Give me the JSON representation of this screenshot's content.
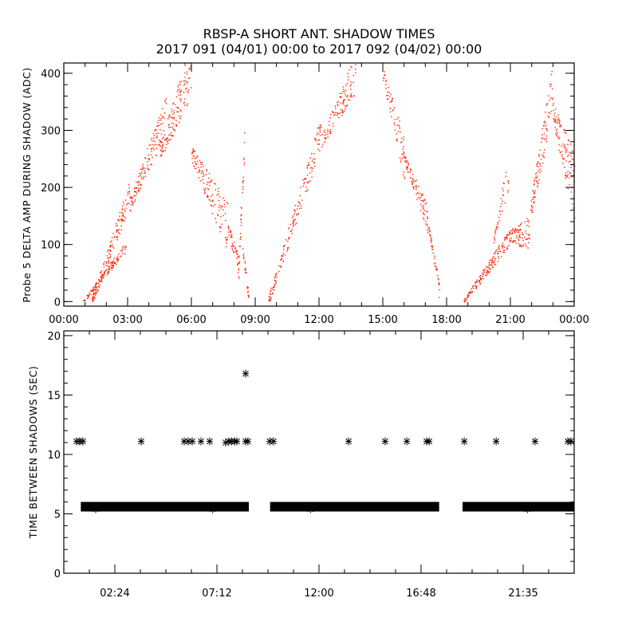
{
  "title": "RBSP-A SHORT ANT. SHADOW TIMES",
  "subtitle": "2017 091 (04/01) 00:00 to 2017 092 (04/02) 00:00",
  "colors": {
    "points": "#ff2000",
    "stars": "#000000",
    "axes": "#000000"
  },
  "chart_data": [
    {
      "type": "scatter",
      "ylabel": "Probe 5 DELTA AMP DURING SHADOW (ADC)",
      "xlabel": "",
      "xlim": [
        0,
        24
      ],
      "ylim": [
        -8,
        418
      ],
      "x_unit": "hours",
      "x_ticks": [
        0,
        3,
        6,
        9,
        12,
        15,
        18,
        21,
        24
      ],
      "x_tick_labels": [
        "00:00",
        "03:00",
        "06:00",
        "09:00",
        "12:00",
        "15:00",
        "18:00",
        "21:00",
        "00:00"
      ],
      "y_ticks": [
        0,
        100,
        200,
        300,
        400
      ],
      "y_tick_labels": [
        "0",
        "100",
        "200",
        "300",
        "400"
      ],
      "trend_segments_note": "each: [t_start_h, t_end_h, value_start, value_end, spread, density]",
      "trend_segments": [
        [
          0.9,
          2.9,
          0,
          96,
          10,
          120
        ],
        [
          1.3,
          3.1,
          0,
          190,
          25,
          140
        ],
        [
          3.1,
          4.8,
          170,
          330,
          35,
          140
        ],
        [
          4.5,
          6.0,
          260,
          410,
          50,
          140
        ],
        [
          6.0,
          7.7,
          260,
          130,
          45,
          130
        ],
        [
          7.7,
          8.3,
          130,
          50,
          25,
          50
        ],
        [
          8.2,
          8.5,
          60,
          280,
          40,
          30
        ],
        [
          8.4,
          8.7,
          90,
          5,
          15,
          25
        ],
        [
          9.6,
          12.1,
          0,
          300,
          30,
          170
        ],
        [
          12.1,
          13.7,
          280,
          400,
          35,
          110
        ],
        [
          15.0,
          16.0,
          400,
          250,
          40,
          70
        ],
        [
          16.0,
          17.1,
          250,
          145,
          25,
          90
        ],
        [
          17.1,
          17.7,
          140,
          5,
          15,
          40
        ],
        [
          18.8,
          20.9,
          0,
          110,
          15,
          150
        ],
        [
          20.2,
          20.9,
          110,
          230,
          30,
          40
        ],
        [
          20.9,
          21.9,
          115,
          120,
          30,
          90
        ],
        [
          21.9,
          23.0,
          150,
          380,
          50,
          110
        ],
        [
          23.0,
          24.0,
          330,
          200,
          60,
          110
        ]
      ]
    },
    {
      "type": "scatter",
      "ylabel": "TIME BETWEEN SHADOWS (SEC)",
      "xlabel": "",
      "xlim": [
        0,
        24
      ],
      "ylim": [
        0,
        20.4
      ],
      "x_unit": "hours",
      "x_ticks": [
        2.4,
        7.2,
        12.0,
        16.8,
        21.6
      ],
      "x_tick_labels": [
        "02:24",
        "07:12",
        "12:00",
        "16:48",
        "21:35"
      ],
      "y_ticks": [
        0,
        5,
        10,
        15,
        20
      ],
      "y_tick_labels": [
        "0",
        "5",
        "10",
        "15",
        "20"
      ],
      "band_value": 5.6,
      "band_intervals_h": [
        [
          0.8,
          8.7
        ],
        [
          9.7,
          17.65
        ],
        [
          18.75,
          24.0
        ]
      ],
      "outliers": [
        {
          "t": 0.6,
          "v": 11.1
        },
        {
          "t": 0.75,
          "v": 11.1
        },
        {
          "t": 0.9,
          "v": 11.1
        },
        {
          "t": 3.64,
          "v": 11.1
        },
        {
          "t": 5.66,
          "v": 11.1
        },
        {
          "t": 5.85,
          "v": 11.1
        },
        {
          "t": 6.04,
          "v": 11.1
        },
        {
          "t": 6.45,
          "v": 11.1
        },
        {
          "t": 6.86,
          "v": 11.1
        },
        {
          "t": 7.61,
          "v": 11.0
        },
        {
          "t": 7.76,
          "v": 11.1
        },
        {
          "t": 7.88,
          "v": 11.1
        },
        {
          "t": 8.03,
          "v": 11.1
        },
        {
          "t": 8.14,
          "v": 11.1
        },
        {
          "t": 8.55,
          "v": 11.1
        },
        {
          "t": 8.66,
          "v": 11.1
        },
        {
          "t": 8.55,
          "v": 16.8
        },
        {
          "t": 9.68,
          "v": 11.1
        },
        {
          "t": 9.86,
          "v": 11.1
        },
        {
          "t": 13.39,
          "v": 11.1
        },
        {
          "t": 15.11,
          "v": 11.1
        },
        {
          "t": 16.13,
          "v": 11.1
        },
        {
          "t": 17.06,
          "v": 11.1
        },
        {
          "t": 17.18,
          "v": 11.1
        },
        {
          "t": 18.83,
          "v": 11.1
        },
        {
          "t": 20.33,
          "v": 11.1
        },
        {
          "t": 22.16,
          "v": 11.1
        },
        {
          "t": 23.7,
          "v": 11.1
        },
        {
          "t": 23.85,
          "v": 11.1
        },
        {
          "t": 1.5,
          "v": 5.4
        },
        {
          "t": 7.0,
          "v": 5.4
        },
        {
          "t": 11.6,
          "v": 5.4
        },
        {
          "t": 21.8,
          "v": 5.4
        }
      ]
    }
  ]
}
